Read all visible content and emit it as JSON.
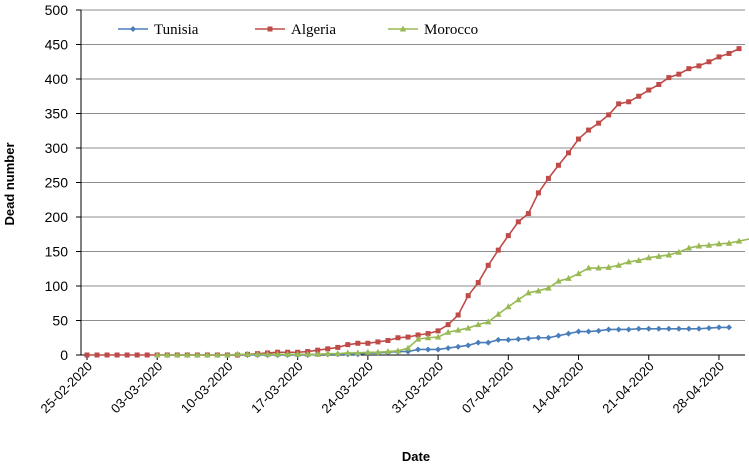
{
  "chart_data": {
    "type": "line",
    "xlabel": "Date",
    "ylabel": "Dead number",
    "ylim": [
      0,
      500
    ],
    "yticks": [
      0,
      50,
      100,
      150,
      200,
      250,
      300,
      350,
      400,
      450,
      500
    ],
    "xlim": [
      "2020-02-25",
      "2020-04-29"
    ],
    "xtick_labels": [
      "25-02-2020",
      "03-03-2020",
      "10-03-2020",
      "17-03-2020",
      "24-03-2020",
      "31-03-2020",
      "07-04-2020",
      "14-04-2020",
      "21-04-2020",
      "28-04-2020"
    ],
    "grid": "horizontal",
    "legend": "top",
    "series": [
      {
        "name": "Tunisia",
        "color": "#4a7ebb",
        "marker": "diamond",
        "points": [
          [
            "2020-03-03",
            0
          ],
          [
            "2020-03-04",
            0
          ],
          [
            "2020-03-05",
            0
          ],
          [
            "2020-03-06",
            0
          ],
          [
            "2020-03-07",
            0
          ],
          [
            "2020-03-08",
            0
          ],
          [
            "2020-03-09",
            0
          ],
          [
            "2020-03-10",
            0
          ],
          [
            "2020-03-11",
            0
          ],
          [
            "2020-03-12",
            0
          ],
          [
            "2020-03-13",
            0
          ],
          [
            "2020-03-14",
            0
          ],
          [
            "2020-03-15",
            0
          ],
          [
            "2020-03-16",
            0
          ],
          [
            "2020-03-17",
            0
          ],
          [
            "2020-03-18",
            0
          ],
          [
            "2020-03-19",
            1
          ],
          [
            "2020-03-20",
            1
          ],
          [
            "2020-03-21",
            1
          ],
          [
            "2020-03-22",
            1
          ],
          [
            "2020-03-23",
            1
          ],
          [
            "2020-03-24",
            3
          ],
          [
            "2020-03-25",
            3
          ],
          [
            "2020-03-26",
            4
          ],
          [
            "2020-03-27",
            5
          ],
          [
            "2020-03-28",
            5
          ],
          [
            "2020-03-29",
            8
          ],
          [
            "2020-03-30",
            8
          ],
          [
            "2020-03-31",
            8
          ],
          [
            "2020-04-01",
            10
          ],
          [
            "2020-04-02",
            12
          ],
          [
            "2020-04-03",
            14
          ],
          [
            "2020-04-04",
            18
          ],
          [
            "2020-04-05",
            18
          ],
          [
            "2020-04-06",
            22
          ],
          [
            "2020-04-07",
            22
          ],
          [
            "2020-04-08",
            23
          ],
          [
            "2020-04-09",
            24
          ],
          [
            "2020-04-10",
            25
          ],
          [
            "2020-04-11",
            25
          ],
          [
            "2020-04-12",
            28
          ],
          [
            "2020-04-13",
            31
          ],
          [
            "2020-04-14",
            34
          ],
          [
            "2020-04-15",
            34
          ],
          [
            "2020-04-16",
            35
          ],
          [
            "2020-04-17",
            37
          ],
          [
            "2020-04-18",
            37
          ],
          [
            "2020-04-19",
            37
          ],
          [
            "2020-04-20",
            38
          ],
          [
            "2020-04-21",
            38
          ],
          [
            "2020-04-22",
            38
          ],
          [
            "2020-04-23",
            38
          ],
          [
            "2020-04-24",
            38
          ],
          [
            "2020-04-25",
            38
          ],
          [
            "2020-04-26",
            38
          ],
          [
            "2020-04-27",
            39
          ],
          [
            "2020-04-28",
            40
          ],
          [
            "2020-04-29",
            40
          ]
        ]
      },
      {
        "name": "Algeria",
        "color": "#be4b48",
        "marker": "square",
        "points": [
          [
            "2020-02-25",
            0
          ],
          [
            "2020-02-26",
            0
          ],
          [
            "2020-02-27",
            0
          ],
          [
            "2020-02-28",
            0
          ],
          [
            "2020-02-29",
            0
          ],
          [
            "2020-03-01",
            0
          ],
          [
            "2020-03-02",
            0
          ],
          [
            "2020-03-03",
            0
          ],
          [
            "2020-03-04",
            0
          ],
          [
            "2020-03-05",
            0
          ],
          [
            "2020-03-06",
            0
          ],
          [
            "2020-03-07",
            0
          ],
          [
            "2020-03-08",
            0
          ],
          [
            "2020-03-09",
            0
          ],
          [
            "2020-03-10",
            0
          ],
          [
            "2020-03-11",
            0
          ],
          [
            "2020-03-12",
            1
          ],
          [
            "2020-03-13",
            2
          ],
          [
            "2020-03-14",
            3
          ],
          [
            "2020-03-15",
            4
          ],
          [
            "2020-03-16",
            4
          ],
          [
            "2020-03-17",
            4
          ],
          [
            "2020-03-18",
            5
          ],
          [
            "2020-03-19",
            7
          ],
          [
            "2020-03-20",
            9
          ],
          [
            "2020-03-21",
            11
          ],
          [
            "2020-03-22",
            15
          ],
          [
            "2020-03-23",
            17
          ],
          [
            "2020-03-24",
            17
          ],
          [
            "2020-03-25",
            19
          ],
          [
            "2020-03-26",
            21
          ],
          [
            "2020-03-27",
            25
          ],
          [
            "2020-03-28",
            26
          ],
          [
            "2020-03-29",
            29
          ],
          [
            "2020-03-30",
            31
          ],
          [
            "2020-03-31",
            35
          ],
          [
            "2020-04-01",
            44
          ],
          [
            "2020-04-02",
            58
          ],
          [
            "2020-04-03",
            86
          ],
          [
            "2020-04-04",
            105
          ],
          [
            "2020-04-05",
            130
          ],
          [
            "2020-04-06",
            152
          ],
          [
            "2020-04-07",
            173
          ],
          [
            "2020-04-08",
            193
          ],
          [
            "2020-04-09",
            205
          ],
          [
            "2020-04-10",
            235
          ],
          [
            "2020-04-11",
            256
          ],
          [
            "2020-04-12",
            275
          ],
          [
            "2020-04-13",
            293
          ],
          [
            "2020-04-14",
            313
          ],
          [
            "2020-04-15",
            326
          ],
          [
            "2020-04-16",
            336
          ],
          [
            "2020-04-17",
            348
          ],
          [
            "2020-04-18",
            364
          ],
          [
            "2020-04-19",
            367
          ],
          [
            "2020-04-20",
            375
          ],
          [
            "2020-04-21",
            384
          ],
          [
            "2020-04-22",
            392
          ],
          [
            "2020-04-23",
            402
          ],
          [
            "2020-04-24",
            407
          ],
          [
            "2020-04-25",
            415
          ],
          [
            "2020-04-26",
            419
          ],
          [
            "2020-04-27",
            425
          ],
          [
            "2020-04-28",
            432
          ],
          [
            "2020-04-29",
            437
          ],
          [
            "2020-04-30",
            444
          ]
        ]
      },
      {
        "name": "Morocco",
        "color": "#98b954",
        "marker": "triangle",
        "points": [
          [
            "2020-03-03",
            0
          ],
          [
            "2020-03-04",
            0
          ],
          [
            "2020-03-05",
            0
          ],
          [
            "2020-03-06",
            0
          ],
          [
            "2020-03-07",
            0
          ],
          [
            "2020-03-08",
            0
          ],
          [
            "2020-03-09",
            0
          ],
          [
            "2020-03-10",
            0
          ],
          [
            "2020-03-11",
            1
          ],
          [
            "2020-03-12",
            1
          ],
          [
            "2020-03-13",
            1
          ],
          [
            "2020-03-14",
            1
          ],
          [
            "2020-03-15",
            1
          ],
          [
            "2020-03-16",
            1
          ],
          [
            "2020-03-17",
            1
          ],
          [
            "2020-03-18",
            1
          ],
          [
            "2020-03-19",
            1
          ],
          [
            "2020-03-20",
            2
          ],
          [
            "2020-03-21",
            2
          ],
          [
            "2020-03-22",
            3
          ],
          [
            "2020-03-23",
            3
          ],
          [
            "2020-03-24",
            4
          ],
          [
            "2020-03-25",
            4
          ],
          [
            "2020-03-26",
            5
          ],
          [
            "2020-03-27",
            6
          ],
          [
            "2020-03-28",
            10
          ],
          [
            "2020-03-29",
            23
          ],
          [
            "2020-03-30",
            25
          ],
          [
            "2020-03-31",
            26
          ],
          [
            "2020-04-01",
            33
          ],
          [
            "2020-04-02",
            36
          ],
          [
            "2020-04-03",
            39
          ],
          [
            "2020-04-04",
            44
          ],
          [
            "2020-04-05",
            48
          ],
          [
            "2020-04-06",
            59
          ],
          [
            "2020-04-07",
            70
          ],
          [
            "2020-04-08",
            80
          ],
          [
            "2020-04-09",
            90
          ],
          [
            "2020-04-10",
            93
          ],
          [
            "2020-04-11",
            97
          ],
          [
            "2020-04-12",
            107
          ],
          [
            "2020-04-13",
            111
          ],
          [
            "2020-04-14",
            118
          ],
          [
            "2020-04-15",
            126
          ],
          [
            "2020-04-16",
            126
          ],
          [
            "2020-04-17",
            127
          ],
          [
            "2020-04-18",
            130
          ],
          [
            "2020-04-19",
            135
          ],
          [
            "2020-04-20",
            137
          ],
          [
            "2020-04-21",
            141
          ],
          [
            "2020-04-22",
            143
          ],
          [
            "2020-04-23",
            145
          ],
          [
            "2020-04-24",
            149
          ],
          [
            "2020-04-25",
            155
          ],
          [
            "2020-04-26",
            158
          ],
          [
            "2020-04-27",
            159
          ],
          [
            "2020-04-28",
            161
          ],
          [
            "2020-04-29",
            162
          ],
          [
            "2020-04-30",
            165
          ],
          [
            "2020-05-01",
            168
          ]
        ]
      }
    ]
  }
}
